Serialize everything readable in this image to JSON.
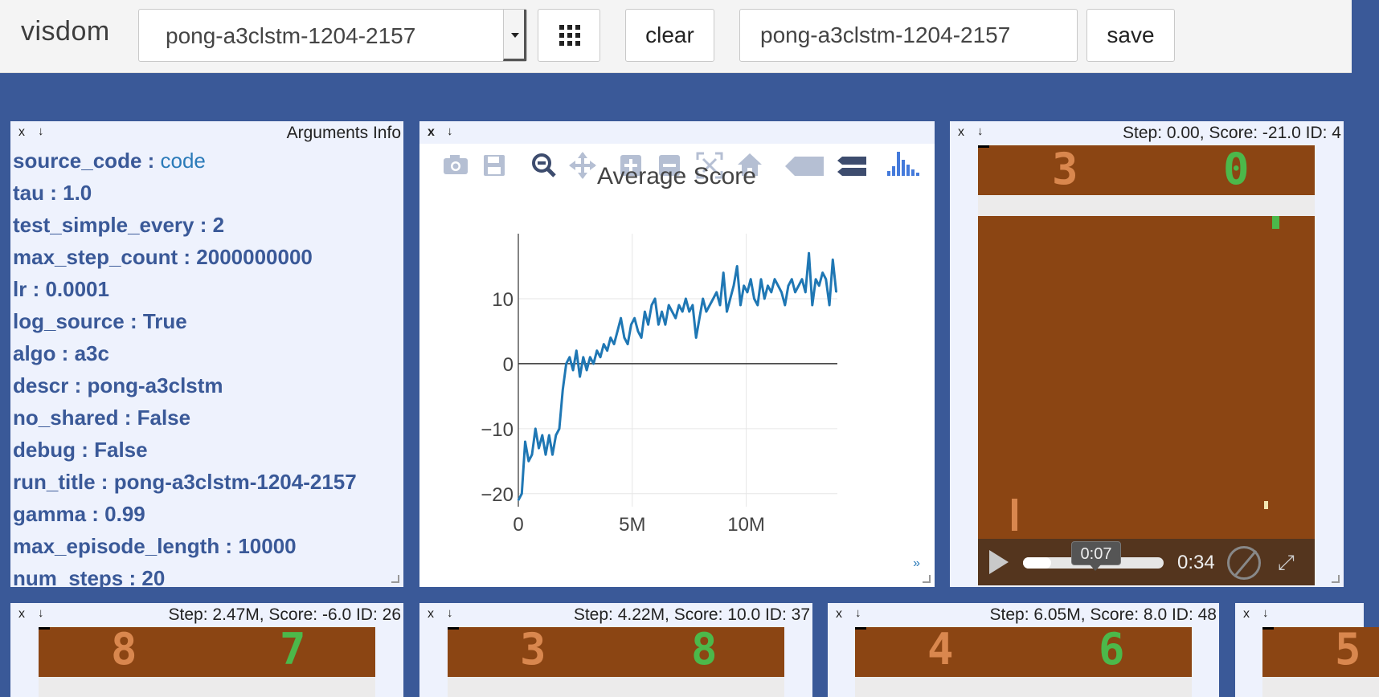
{
  "app": {
    "brand": "visdom",
    "env_select_value": "pong-a3clstm-1204-2157",
    "clear_label": "clear",
    "save_label": "save",
    "env_name_value": "pong-a3clstm-1204-2157",
    "colors": {
      "background": "#3a5998",
      "pane": "#eef2fd",
      "toolbar": "#f4f4f4"
    }
  },
  "pane_controls": {
    "close": "x",
    "download": "↓",
    "expand": "»"
  },
  "args_pane": {
    "title": "Arguments Info",
    "rows": [
      {
        "key": "source_code",
        "value": "code",
        "value_is_link": true
      },
      {
        "key": "tau",
        "value": "1.0"
      },
      {
        "key": "test_simple_every",
        "value": "2"
      },
      {
        "key": "max_step_count",
        "value": "2000000000"
      },
      {
        "key": "lr",
        "value": "0.0001"
      },
      {
        "key": "log_source",
        "value": "True"
      },
      {
        "key": "algo",
        "value": "a3c"
      },
      {
        "key": "descr",
        "value": "pong-a3clstm"
      },
      {
        "key": "no_shared",
        "value": "False"
      },
      {
        "key": "debug",
        "value": "False"
      },
      {
        "key": "run_title",
        "value": "pong-a3clstm-1204-2157"
      },
      {
        "key": "gamma",
        "value": "0.99"
      },
      {
        "key": "max_episode_length",
        "value": "10000"
      },
      {
        "key": "num_steps",
        "value": "20"
      }
    ]
  },
  "plot_pane": {
    "title": "Average Score",
    "modebar_icons": [
      "camera-icon",
      "save-icon",
      "zoom-icon",
      "pan-icon",
      "zoom-in-icon",
      "zoom-out-icon",
      "autoscale-icon",
      "home-icon",
      "hover-closest-icon",
      "hover-compare-icon",
      "plotly-logo-icon"
    ]
  },
  "chart_data": {
    "type": "line",
    "title": "Average Score",
    "xlabel": "",
    "ylabel": "",
    "xlim": [
      0,
      14000000
    ],
    "ylim": [
      -22,
      20
    ],
    "xticks": [
      {
        "v": 0,
        "label": "0"
      },
      {
        "v": 5000000,
        "label": "5M"
      },
      {
        "v": 10000000,
        "label": "10M"
      }
    ],
    "yticks": [
      {
        "v": -20,
        "label": "−20"
      },
      {
        "v": -10,
        "label": "−10"
      },
      {
        "v": 0,
        "label": "0"
      },
      {
        "v": 10,
        "label": "10"
      }
    ],
    "grid": true,
    "series": [
      {
        "color": "#1f77b4",
        "x": [
          0,
          150000,
          300000,
          450000,
          600000,
          750000,
          900000,
          1050000,
          1200000,
          1350000,
          1500000,
          1650000,
          1800000,
          1950000,
          2100000,
          2250000,
          2400000,
          2550000,
          2700000,
          2850000,
          3000000,
          3150000,
          3300000,
          3450000,
          3600000,
          3750000,
          3900000,
          4050000,
          4200000,
          4350000,
          4500000,
          4650000,
          4800000,
          4950000,
          5100000,
          5250000,
          5400000,
          5550000,
          5700000,
          5850000,
          6000000,
          6150000,
          6300000,
          6450000,
          6600000,
          6750000,
          6900000,
          7050000,
          7200000,
          7350000,
          7500000,
          7650000,
          7800000,
          7950000,
          8100000,
          8250000,
          8400000,
          8550000,
          8700000,
          8850000,
          9000000,
          9150000,
          9300000,
          9450000,
          9600000,
          9750000,
          9900000,
          10050000,
          10200000,
          10350000,
          10500000,
          10650000,
          10800000,
          10950000,
          11100000,
          11250000,
          11400000,
          11550000,
          11700000,
          11850000,
          12000000,
          12150000,
          12300000,
          12450000,
          12600000,
          12750000,
          12900000,
          13050000,
          13200000,
          13350000,
          13500000,
          13650000,
          13800000,
          13950000
        ],
        "y": [
          -21,
          -20,
          -12,
          -15,
          -14,
          -10,
          -13,
          -11,
          -14,
          -11,
          -14,
          -11,
          -10,
          -4,
          0,
          1,
          -1,
          2,
          -2,
          1,
          -1,
          1,
          0,
          2,
          1,
          3,
          2,
          4,
          3,
          5,
          7,
          4,
          3,
          6,
          7,
          5,
          4,
          8,
          6,
          9,
          10,
          6,
          8,
          6,
          9,
          8,
          7,
          9,
          8,
          10,
          8,
          9,
          4,
          7,
          10,
          8,
          9,
          10,
          11,
          9,
          14,
          8,
          10,
          12,
          15,
          9,
          12,
          11,
          13,
          10,
          9,
          13,
          10,
          12,
          11,
          13,
          12,
          11,
          9,
          12,
          13,
          11,
          12,
          13,
          11,
          17,
          9,
          13,
          12,
          14,
          13,
          9,
          16,
          11
        ],
        "note_y_last": 11
      }
    ]
  },
  "video_panes": [
    {
      "title": "Step: 0.00, Score: -21.0 ID: 4",
      "score_left": "3",
      "score_right": "0",
      "time_tooltip": "0:07",
      "duration": "0:34",
      "progress": 0.2
    },
    {
      "title": "Step: 2.47M, Score: -6.0 ID: 26",
      "score_left": "8",
      "score_right": "7"
    },
    {
      "title": "Step: 4.22M, Score: 10.0 ID: 37",
      "score_left": "3",
      "score_right": "8"
    },
    {
      "title": "Step: 6.05M, Score: 8.0 ID: 48",
      "score_left": "4",
      "score_right": "6"
    },
    {
      "title": "",
      "score_left": "5",
      "score_right": ""
    }
  ]
}
